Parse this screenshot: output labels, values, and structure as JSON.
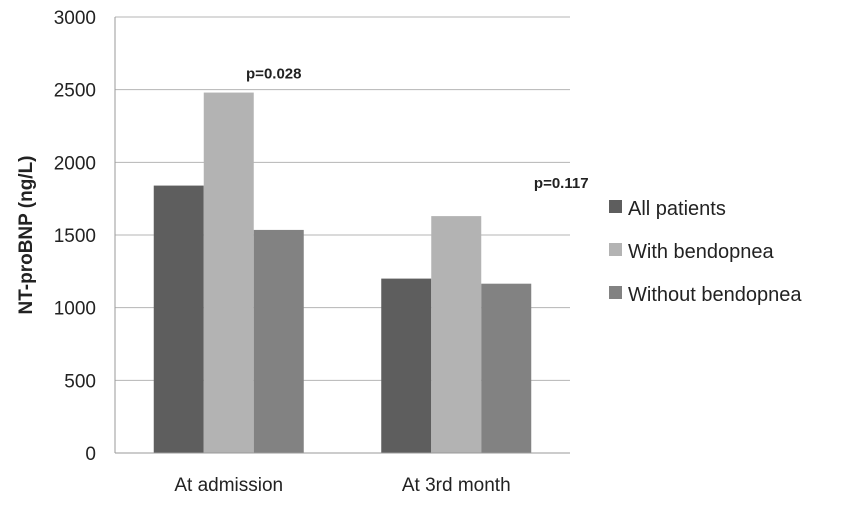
{
  "chart_data": {
    "type": "bar",
    "title": "",
    "xlabel": "",
    "ylabel": "NT-proBNP (ng/L)",
    "categories": [
      "At admission",
      "At 3rd month"
    ],
    "series": [
      {
        "name": "All patients",
        "values": [
          1840,
          1200
        ],
        "color": "#5e5e5e"
      },
      {
        "name": "With bendopnea",
        "values": [
          2480,
          1630
        ],
        "color": "#b3b3b3"
      },
      {
        "name": "Without bendopnea",
        "values": [
          1535,
          1165
        ],
        "color": "#828282"
      }
    ],
    "ylim": [
      0,
      3000
    ],
    "yticks": [
      0,
      500,
      1000,
      1500,
      2000,
      2500,
      3000
    ],
    "yticklabels": [
      "0",
      "500",
      "1000",
      "1500",
      "2000",
      "2500",
      "3000"
    ],
    "grid": true,
    "legend_position": "right",
    "annotations": [
      {
        "text": "p=0.028",
        "category": "At admission"
      },
      {
        "text": "p=0.117",
        "category": "At 3rd month"
      }
    ]
  }
}
